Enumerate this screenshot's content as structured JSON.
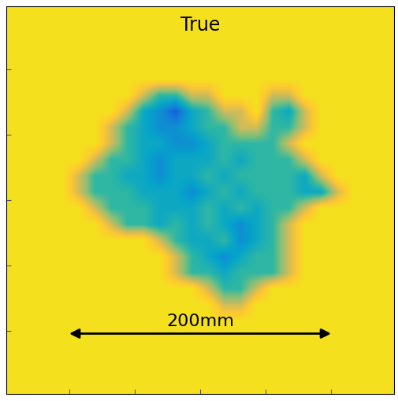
{
  "chart_data": {
    "type": "heatmap",
    "title": "True",
    "tick_labels": false,
    "xlim": [
      -148,
      148
    ],
    "ylim": [
      -148,
      148
    ],
    "xticks": [
      -100,
      -50,
      0,
      50,
      100
    ],
    "yticks": [
      -100,
      -50,
      0,
      50,
      100
    ],
    "color_range": [
      0,
      1
    ],
    "annotation": {
      "text": "200mm",
      "x": [
        -100,
        100
      ],
      "y": -102
    },
    "cells": [
      [
        1,
        1,
        1,
        1,
        1,
        1,
        1,
        1,
        1,
        1,
        1,
        1,
        1,
        1,
        1,
        1,
        1,
        1,
        1,
        1,
        1,
        1,
        1,
        1
      ],
      [
        1,
        1,
        1,
        1,
        1,
        1,
        1,
        1,
        1,
        1,
        1,
        1,
        1,
        1,
        1,
        1,
        1,
        1,
        1,
        1,
        1,
        1,
        1,
        1
      ],
      [
        1,
        1,
        1,
        1,
        1,
        1,
        1,
        1,
        1,
        1,
        1,
        1,
        1,
        1,
        1,
        1,
        1,
        1,
        1,
        1,
        1,
        1,
        1,
        1
      ],
      [
        1,
        1,
        1,
        1,
        1,
        1,
        1,
        1,
        1,
        1,
        1,
        1,
        1,
        1,
        1,
        1,
        1,
        1,
        1,
        1,
        1,
        1,
        1,
        1
      ],
      [
        1,
        1,
        1,
        1,
        1,
        1,
        1,
        1,
        1,
        1,
        1,
        1,
        1,
        1,
        1,
        1,
        1,
        1,
        1,
        1,
        1,
        1,
        1,
        1
      ],
      [
        1,
        1,
        1,
        1,
        1,
        1,
        1,
        1,
        0.75,
        0.5,
        0.5,
        0.75,
        0.75,
        1,
        1,
        1,
        0.75,
        0.75,
        1,
        1,
        1,
        1,
        1,
        1
      ],
      [
        1,
        1,
        1,
        1,
        1,
        1,
        1,
        0.75,
        0.4,
        0.3,
        0.15,
        0.4,
        0.5,
        0.75,
        0.75,
        1,
        0.5,
        0.4,
        0.75,
        1,
        1,
        1,
        1,
        1
      ],
      [
        1,
        1,
        1,
        1,
        1,
        1,
        0.75,
        0.5,
        0.4,
        0.3,
        0.3,
        0.4,
        0.5,
        0.5,
        0.75,
        0.75,
        0.5,
        0.5,
        0.75,
        1,
        1,
        1,
        1,
        1
      ],
      [
        1,
        1,
        1,
        1,
        1,
        1,
        0.75,
        0.5,
        0.4,
        0.4,
        0.3,
        0.3,
        0.4,
        0.5,
        0.5,
        0.5,
        0.5,
        0.75,
        1,
        1,
        1,
        1,
        1,
        1
      ],
      [
        1,
        1,
        1,
        1,
        1,
        0.75,
        0.5,
        0.5,
        0.4,
        0.3,
        0.4,
        0.4,
        0.4,
        0.5,
        0.4,
        0.5,
        0.5,
        0.5,
        0.75,
        1,
        1,
        1,
        1,
        1
      ],
      [
        1,
        1,
        1,
        1,
        0.75,
        0.5,
        0.5,
        0.4,
        0.4,
        0.3,
        0.4,
        0.4,
        0.5,
        0.4,
        0.5,
        0.5,
        0.5,
        0.5,
        0.4,
        0.75,
        1,
        1,
        1,
        1
      ],
      [
        1,
        1,
        1,
        1,
        0.75,
        0.5,
        0.5,
        0.5,
        0.4,
        0.4,
        0.4,
        0.3,
        0.4,
        0.5,
        0.4,
        0.5,
        0.5,
        0.5,
        0.4,
        0.4,
        0.75,
        1,
        1,
        1
      ],
      [
        1,
        1,
        1,
        1,
        1,
        0.75,
        0.5,
        0.5,
        0.5,
        0.4,
        0.4,
        0.4,
        0.5,
        0.4,
        0.5,
        0.4,
        0.5,
        0.5,
        0.75,
        1,
        1,
        1,
        1,
        1
      ],
      [
        1,
        1,
        1,
        1,
        1,
        1,
        0.75,
        0.5,
        0.5,
        0.4,
        0.5,
        0.4,
        0.5,
        0.4,
        0.3,
        0.4,
        0.5,
        0.75,
        1,
        1,
        1,
        1,
        1,
        1
      ],
      [
        1,
        1,
        1,
        1,
        1,
        1,
        1,
        1,
        1,
        0.75,
        0.5,
        0.4,
        0.4,
        0.5,
        0.3,
        0.4,
        0.5,
        0.75,
        1,
        1,
        1,
        1,
        1,
        1
      ],
      [
        1,
        1,
        1,
        1,
        1,
        1,
        1,
        1,
        1,
        1,
        0.75,
        0.5,
        0.4,
        0.3,
        0.4,
        0.5,
        0.5,
        0.75,
        1,
        1,
        1,
        1,
        1,
        1
      ],
      [
        1,
        1,
        1,
        1,
        1,
        1,
        1,
        1,
        1,
        1,
        0.75,
        0.5,
        0.5,
        0.4,
        0.5,
        0.5,
        0.5,
        0.75,
        1,
        1,
        1,
        1,
        1,
        1
      ],
      [
        1,
        1,
        1,
        1,
        1,
        1,
        1,
        1,
        1,
        1,
        1,
        1,
        0.75,
        0.5,
        0.5,
        0.75,
        1,
        1,
        1,
        1,
        1,
        1,
        1,
        1
      ],
      [
        1,
        1,
        1,
        1,
        1,
        1,
        1,
        1,
        1,
        1,
        1,
        1,
        1,
        0.75,
        0.75,
        1,
        1,
        1,
        1,
        1,
        1,
        1,
        1,
        1
      ],
      [
        1,
        1,
        1,
        1,
        1,
        1,
        1,
        1,
        1,
        1,
        1,
        1,
        1,
        1,
        1,
        1,
        1,
        1,
        1,
        1,
        1,
        1,
        1,
        1
      ],
      [
        1,
        1,
        1,
        1,
        1,
        1,
        1,
        1,
        1,
        1,
        1,
        1,
        1,
        1,
        1,
        1,
        1,
        1,
        1,
        1,
        1,
        1,
        1,
        1
      ],
      [
        1,
        1,
        1,
        1,
        1,
        1,
        1,
        1,
        1,
        1,
        1,
        1,
        1,
        1,
        1,
        1,
        1,
        1,
        1,
        1,
        1,
        1,
        1,
        1
      ],
      [
        1,
        1,
        1,
        1,
        1,
        1,
        1,
        1,
        1,
        1,
        1,
        1,
        1,
        1,
        1,
        1,
        1,
        1,
        1,
        1,
        1,
        1,
        1,
        1
      ],
      [
        1,
        1,
        1,
        1,
        1,
        1,
        1,
        1,
        1,
        1,
        1,
        1,
        1,
        1,
        1,
        1,
        1,
        1,
        1,
        1,
        1,
        1,
        1,
        1
      ]
    ]
  }
}
